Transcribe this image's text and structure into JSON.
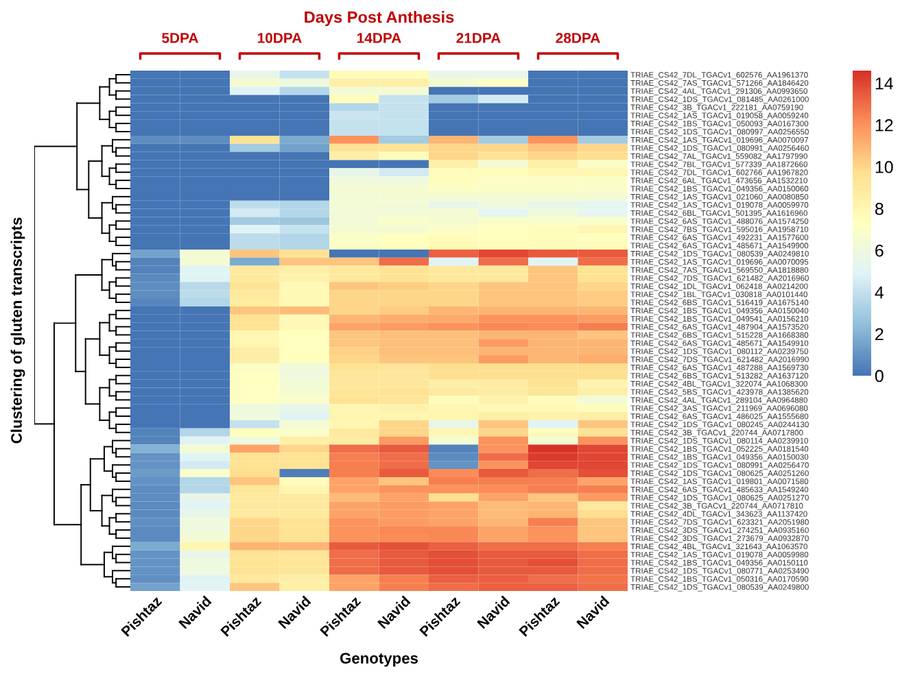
{
  "chart_data": {
    "type": "heatmap",
    "title": "Days Post Anthesis",
    "xlabel": "Genotypes",
    "annotations": [
      "5DPA",
      "10DPA",
      "14DPA",
      "21DPA",
      "28DPA",
      "Clustering of gluten transcripts"
    ],
    "categories": [
      "Pishtaz",
      "Navid",
      "Pishtaz",
      "Navid",
      "Pishtaz",
      "Navid",
      "Pishtaz",
      "Navid",
      "Pishtaz",
      "Navid"
    ],
    "y_categories": [
      "TRIAE_CS42_7DL_TGACv1_602576_AA1961370",
      "TRIAE_CS42_7AS_TGACv1_571266_AA1846420",
      "TRIAE_CS42_4AL_TGACv1_291306_AA0993650",
      "TRIAE_CS42_1DS_TGACv1_081485_AA0261000",
      "TRIAE_CS42_3B_TGACv1_222181_AA0759190",
      "TRIAE_CS42_1AS_TGACv1_019058_AA0059240",
      "TRIAE_CS42_1BS_TGACv1_050093_AA0167300",
      "TRIAE_CS42_1DS_TGACv1_080997_AA0256550",
      "TRIAE_CS42_1AS_TGACv1_019696_AA0070097",
      "TRIAE_CS42_1DS_TGACv1_080991_AA0256460",
      "TRIAE_CS42_7AL_TGACv1_559082_AA1797990",
      "TRIAE_CS42_7BL_TGACv1_577339_AA1872660",
      "TRIAE_CS42_7DL_TGACv1_602766_AA1967820",
      "TRIAE_CS42_6AL_TGACv1_473656_AA1532210",
      "TRIAE_CS42_1BS_TGACv1_049356_AA0150060",
      "TRIAE_CS42_1AS_TGACv1_021060_AA0080850",
      "TRIAE_CS42_1AS_TGACv1_019078_AA0059970",
      "TRIAE_CS42_6BL_TGACv1_501395_AA1616960",
      "TRIAE_CS42_6AS_TGACv1_488076_AA1574250",
      "TRIAE_CS42_7BS_TGACv1_595016_AA1958710",
      "TRIAE_CS42_6AS_TGACv1_492231_AA1577600",
      "TRIAE_CS42_6AS_TGACv1_485671_AA1549900",
      "TRIAE_CS42_1DS_TGACv1_080539_AA0249810",
      "TRIAE_CS42_1AS_TGACv1_019696_AA0070095",
      "TRIAE_CS42_7AS_TGACv1_569550_AA1818880",
      "TRIAE_CS42_7DS_TGACv1_621482_AA2016960",
      "TRIAE_CS42_1DL_TGACv1_062418_AA0214200",
      "TRIAE_CS42_1BL_TGACv1_030818_AA0101440",
      "TRIAE_CS42_6BS_TGACv1_516419_AA1675140",
      "TRIAE_CS42_1BS_TGACv1_049356_AA0150040",
      "TRIAE_CS42_1BS_TGACv1_049541_AA0156210",
      "TRIAE_CS42_6AS_TGACv1_487904_AA1573520",
      "TRIAE_CS42_6BS_TGACv1_515228_AA1668380",
      "TRIAE_CS42_6AS_TGACv1_485671_AA1549910",
      "TRIAE_CS42_1DS_TGACv1_080112_AA0239750",
      "TRIAE_CS42_7DS_TGACv1_621482_AA2016990",
      "TRIAE_CS42_6AS_TGACv1_487288_AA1569730",
      "TRIAE_CS42_6BS_TGACv1_513282_AA1637120",
      "TRIAE_CS42_4BL_TGACv1_322074_AA1068300",
      "TRIAE_CS42_5BS_TGACv1_423978_AA1385620",
      "TRIAE_CS42_4AL_TGACv1_289104_AA0964880",
      "TRIAE_CS42_3AS_TGACv1_211969_AA0696080",
      "TRIAE_CS42_6AS_TGACv1_486025_AA1555680",
      "TRIAE_CS42_1DS_TGACv1_080245_AA0244130",
      "TRIAE_CS42_3B_TGACv1_220744_AA0717800",
      "TRIAE_CS42_1DS_TGACv1_080114_AA0239910",
      "TRIAE_CS42_1BS_TGACv1_052225_AA0181540",
      "TRIAE_CS42_1BS_TGACv1_049356_AA0150030",
      "TRIAE_CS42_1DS_TGACv1_080991_AA0256470",
      "TRIAE_CS42_1DS_TGACv1_080625_AA0251260",
      "TRIAE_CS42_1AS_TGACv1_019801_AA0071580",
      "TRIAE_CS42_6AS_TGACv1_485633_AA1549240",
      "TRIAE_CS42_1DS_TGACv1_080625_AA0251270",
      "TRIAE_CS42_3B_TGACv1_220744_AA0717810",
      "TRIAE_CS42_4DL_TGACv1_343623_AA1137420",
      "TRIAE_CS42_7DS_TGACv1_623321_AA2051980",
      "TRIAE_CS42_3DS_TGACv1_274251_AA0935160",
      "TRIAE_CS42_3DS_TGACv1_273679_AA0932870",
      "TRIAE_CS42_4BL_TGACv1_321643_AA1063570",
      "TRIAE_CS42_1AS_TGACv1_019078_AA0059980",
      "TRIAE_CS42_1BS_TGACv1_049356_AA0150110",
      "TRIAE_CS42_1DS_TGACv1_080771_AA0253490",
      "TRIAE_CS42_1BS_TGACv1_050316_AA0170590",
      "TRIAE_CS42_1DS_TGACv1_080539_AA0249800"
    ],
    "cells": [
      [
        0,
        0,
        5.5,
        4,
        7.5,
        7.5,
        5.5,
        5.5,
        0,
        0
      ],
      [
        0,
        0,
        6.5,
        6,
        8.5,
        8.5,
        6.5,
        7,
        0,
        0
      ],
      [
        0,
        0,
        5,
        3.5,
        6.5,
        6.5,
        0,
        0,
        0,
        0
      ],
      [
        0,
        0,
        0,
        0,
        7.5,
        4,
        3,
        4.5,
        0,
        0
      ],
      [
        0,
        0,
        0,
        0,
        3.5,
        4,
        0,
        0,
        0,
        0
      ],
      [
        0,
        0,
        0,
        0,
        4.2,
        4,
        0,
        0,
        0,
        0
      ],
      [
        0,
        0,
        0,
        0,
        4,
        4,
        0,
        0,
        0,
        0
      ],
      [
        0,
        0,
        0,
        0,
        4,
        4,
        0,
        0,
        0,
        0
      ],
      [
        0.8,
        0.8,
        9.5,
        1.8,
        12,
        3,
        11,
        3,
        12,
        3
      ],
      [
        0,
        0,
        3,
        1.5,
        9.5,
        9.5,
        10,
        10,
        10.5,
        10
      ],
      [
        0,
        0,
        0,
        0,
        8.5,
        7.5,
        10,
        9.5,
        10,
        9.7
      ],
      [
        0,
        0,
        0,
        0,
        0,
        0,
        8.5,
        6.5,
        8.5,
        7
      ],
      [
        0,
        0,
        0,
        0,
        5.5,
        4.5,
        7.5,
        7.5,
        8,
        8
      ],
      [
        0,
        0,
        0,
        0,
        6,
        6,
        7.5,
        7,
        7,
        7
      ],
      [
        0,
        0,
        0,
        0,
        6.5,
        6.5,
        7,
        7,
        7,
        6.8
      ],
      [
        0,
        0,
        0,
        0,
        6.3,
        6.5,
        6.5,
        6.5,
        6.5,
        6.5
      ],
      [
        0,
        0,
        3.8,
        3.5,
        6.3,
        6.3,
        5.5,
        6,
        5.5,
        5.3
      ],
      [
        0,
        0,
        4.5,
        3.5,
        6.3,
        6.3,
        6.5,
        5.3,
        6,
        5.3
      ],
      [
        0,
        0,
        3,
        2.8,
        6.3,
        6.8,
        6.5,
        6.8,
        6.8,
        6.8
      ],
      [
        0,
        0,
        5,
        4,
        6.5,
        6.5,
        7,
        7.2,
        7.5,
        8
      ],
      [
        0,
        0,
        3.8,
        3.5,
        7,
        7.3,
        7.5,
        7.3,
        7.5,
        7.3
      ],
      [
        0,
        0,
        3.8,
        3.5,
        7,
        7.3,
        7.8,
        7.5,
        7.5,
        7.5
      ],
      [
        1.5,
        6.5,
        10.5,
        9.5,
        0,
        0,
        13.3,
        14,
        13.5,
        13.5
      ],
      [
        0.5,
        6.5,
        1.8,
        10.5,
        10.5,
        13,
        5,
        13,
        5,
        13
      ],
      [
        0.5,
        5,
        9,
        8.5,
        9,
        9.5,
        9,
        9,
        10.5,
        9.5
      ],
      [
        0.7,
        5,
        9,
        8.3,
        9,
        9.5,
        9,
        9,
        10.5,
        9.5
      ],
      [
        0.8,
        3.7,
        9.5,
        7.8,
        10.5,
        10.3,
        10,
        10.5,
        10.5,
        10
      ],
      [
        0.8,
        3.8,
        9,
        7.8,
        10,
        10,
        10,
        10.5,
        10.5,
        10.3
      ],
      [
        0.6,
        3.5,
        8.8,
        7.8,
        10,
        10,
        10,
        10.5,
        10.5,
        10.3
      ],
      [
        0,
        0,
        10.5,
        10.8,
        10,
        10.3,
        11,
        11,
        11,
        11
      ],
      [
        0,
        0,
        9.5,
        7.8,
        11,
        11.2,
        11.3,
        12,
        12,
        11.7
      ],
      [
        0,
        0,
        9.5,
        7.8,
        11.5,
        11.7,
        12,
        12.3,
        12.2,
        12.5
      ],
      [
        0,
        0,
        8,
        7.3,
        10.5,
        10.7,
        10.7,
        11,
        11,
        10.5
      ],
      [
        0,
        0,
        8,
        7.3,
        10.5,
        10.7,
        10.7,
        11.7,
        11,
        11
      ],
      [
        0,
        0,
        8.7,
        7.3,
        10.2,
        10.7,
        10.7,
        11,
        11,
        11
      ],
      [
        0,
        0,
        8.5,
        7.3,
        10,
        10.5,
        10.5,
        11.7,
        11,
        11.2
      ],
      [
        0,
        0,
        7,
        6,
        9.5,
        9.3,
        9.8,
        9.7,
        9.7,
        9.8
      ],
      [
        0,
        0,
        7.2,
        6,
        9.2,
        9.2,
        9.7,
        9.7,
        9.7,
        9.7
      ],
      [
        0,
        0,
        7.2,
        6.3,
        9.2,
        9.2,
        8.5,
        8.8,
        9.5,
        8.2
      ],
      [
        0,
        0,
        7.2,
        6.5,
        9.3,
        9.5,
        9,
        8.8,
        9.3,
        8.5
      ],
      [
        0,
        0,
        7.2,
        6.8,
        9.5,
        9.3,
        7.5,
        8.3,
        7.5,
        6.3
      ],
      [
        0,
        0,
        6,
        5.5,
        8,
        8.3,
        8,
        7.8,
        7.8,
        7.5
      ],
      [
        0,
        0,
        6,
        5,
        8,
        8,
        8,
        8.5,
        8.3,
        8.5
      ],
      [
        0,
        0,
        4,
        6.5,
        8,
        10,
        5.5,
        10.5,
        5,
        10.5
      ],
      [
        0.5,
        3.5,
        7.3,
        6.8,
        9,
        10,
        8,
        10,
        7.5,
        9.5
      ],
      [
        0.5,
        5,
        6,
        8.5,
        8.8,
        11.8,
        6.5,
        12,
        6.5,
        12
      ],
      [
        2,
        6.5,
        11.5,
        10,
        13,
        13.5,
        0.5,
        12,
        14.5,
        14
      ],
      [
        1,
        5,
        9.5,
        9.5,
        12.5,
        13,
        0.7,
        13,
        14.3,
        14
      ],
      [
        1,
        4.5,
        9.5,
        9.5,
        12.5,
        13,
        1,
        12,
        14,
        14
      ],
      [
        1.3,
        6.8,
        9.8,
        0.3,
        12.5,
        13.5,
        12.2,
        13.5,
        13,
        13.8
      ],
      [
        1,
        3.5,
        10.5,
        7.5,
        11.5,
        10.5,
        12.5,
        12.5,
        12.5,
        11.5
      ],
      [
        0.8,
        3.5,
        9.2,
        8,
        11.5,
        12,
        12,
        12.2,
        12.5,
        12.5
      ],
      [
        0.8,
        5.5,
        9,
        9,
        10.8,
        11.5,
        9.7,
        11.5,
        10.5,
        11.8
      ],
      [
        0.7,
        5,
        9,
        9,
        11.5,
        11.7,
        11.5,
        10.8,
        11,
        9
      ],
      [
        0.7,
        5.5,
        9,
        9,
        11.5,
        11.7,
        11.5,
        10.8,
        11,
        9.8
      ],
      [
        0.9,
        6,
        10,
        9.5,
        12,
        11.7,
        11.5,
        11,
        12.5,
        10.5
      ],
      [
        0.7,
        6,
        10,
        9.5,
        12,
        12.3,
        12.3,
        11.5,
        12,
        10.5
      ],
      [
        0.7,
        6.5,
        10,
        9.5,
        12,
        12.2,
        12.3,
        11.5,
        12,
        10.5
      ],
      [
        1.8,
        8,
        11,
        11,
        13.5,
        13.7,
        13.3,
        13,
        13,
        12.5
      ],
      [
        1,
        5.5,
        9.5,
        9.3,
        13,
        13.5,
        13.8,
        13.5,
        13.5,
        13
      ],
      [
        1,
        6,
        9.5,
        9.3,
        13,
        13.5,
        13.8,
        13.5,
        13.8,
        13
      ],
      [
        1,
        6,
        9.5,
        9.3,
        13,
        13.5,
        13.8,
        13.5,
        13.5,
        13
      ],
      [
        0.9,
        5,
        9,
        8.5,
        11.5,
        12.5,
        13.3,
        13.3,
        13,
        12.8
      ],
      [
        1.5,
        5,
        10.5,
        8.5,
        11.5,
        12.5,
        13,
        13.3,
        13.3,
        13
      ]
    ],
    "clim": [
      0,
      14.6
    ],
    "cticks": [
      0,
      2,
      4,
      6,
      8,
      10,
      12,
      14
    ]
  }
}
